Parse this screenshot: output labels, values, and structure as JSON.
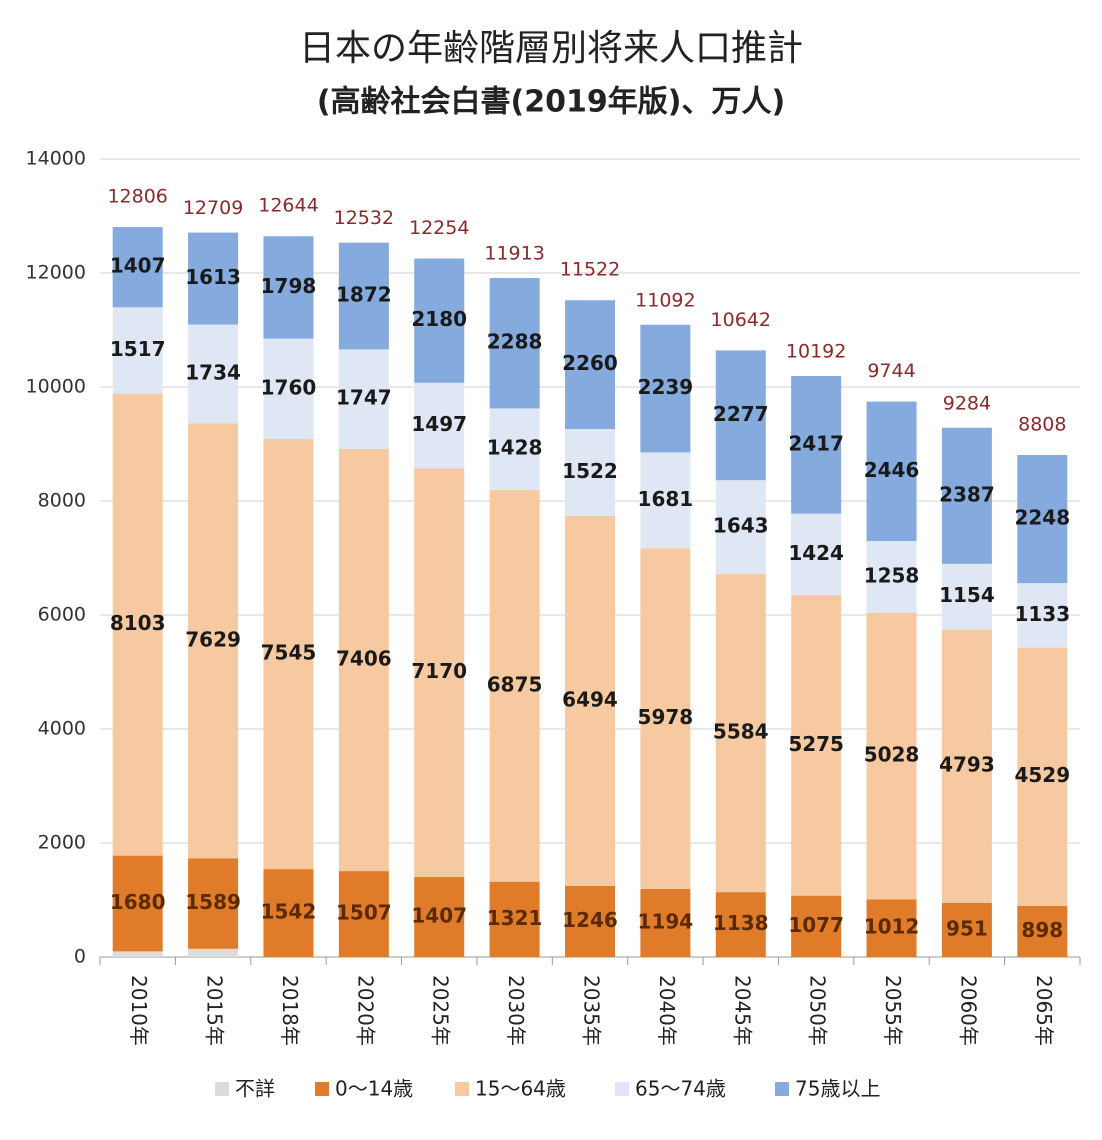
{
  "chart_data": {
    "type": "stacked_bar",
    "title": "日本の年齢階層別将来人口推計",
    "subtitle": "(高齢社会白書(2019年版)、万人)",
    "categories": [
      "2010年",
      "2015年",
      "2018年",
      "2020年",
      "2025年",
      "2030年",
      "2035年",
      "2040年",
      "2045年",
      "2050年",
      "2055年",
      "2060年",
      "2065年"
    ],
    "series": [
      {
        "name": "不詳",
        "color": "#dcdcdc",
        "values": [
          99,
          144,
          0,
          0,
          0,
          0,
          0,
          0,
          0,
          0,
          0,
          0,
          0
        ]
      },
      {
        "name": "0～14歳",
        "color": "#e07b2a",
        "values": [
          1680,
          1589,
          1542,
          1507,
          1407,
          1321,
          1246,
          1194,
          1138,
          1077,
          1012,
          951,
          898
        ]
      },
      {
        "name": "15～64歳",
        "color": "#f6c9a0",
        "values": [
          8103,
          7629,
          7545,
          7406,
          7170,
          6875,
          6494,
          5978,
          5584,
          5275,
          5028,
          4793,
          4529
        ]
      },
      {
        "name": "65～74歳",
        "color": "#dfe7f4",
        "values": [
          1517,
          1734,
          1760,
          1747,
          1497,
          1428,
          1522,
          1681,
          1643,
          1424,
          1258,
          1154,
          1133
        ]
      },
      {
        "name": "75歳以上",
        "color": "#84aade",
        "values": [
          1407,
          1613,
          1798,
          1872,
          2180,
          2288,
          2260,
          2239,
          2277,
          2417,
          2446,
          2387,
          2248
        ]
      }
    ],
    "totals": [
      12806,
      12709,
      12644,
      12532,
      12254,
      11913,
      11522,
      11092,
      10642,
      10192,
      9744,
      9284,
      8808
    ],
    "ylim": [
      0,
      14000
    ],
    "yticks": [
      0,
      2000,
      4000,
      6000,
      8000,
      10000,
      12000,
      14000
    ],
    "grid": true
  }
}
